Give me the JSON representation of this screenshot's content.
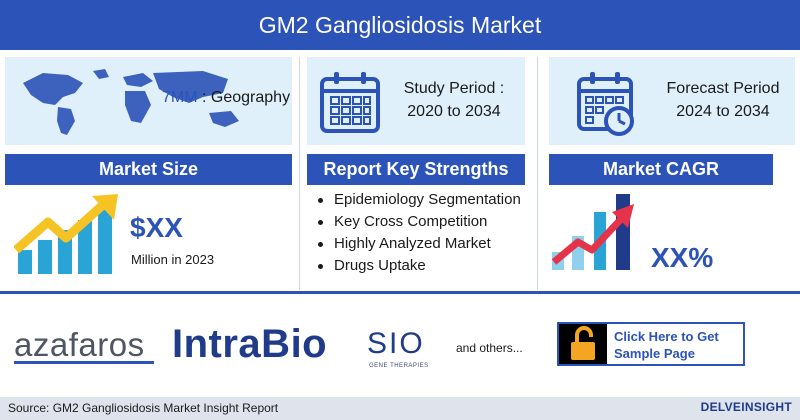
{
  "header": {
    "title": "GM2 Gangliosidosis Market"
  },
  "geography": {
    "highlight": "7MM",
    "label": " : Geography"
  },
  "study_period": {
    "line1": "Study Period :",
    "line2": "2020 to 2034"
  },
  "forecast_period": {
    "line1": "Forecast Period",
    "line2": "2024 to 2034"
  },
  "sections": {
    "market_size": "Market Size",
    "key_strengths": "Report Key Strengths",
    "market_cagr": "Market CAGR"
  },
  "market_size": {
    "value": "$XX",
    "subtitle": "Million in 2023"
  },
  "key_strengths": {
    "items": [
      "Epidemiology Segmentation",
      "Key Cross Competition",
      "Highly Analyzed Market",
      "Drugs Uptake"
    ]
  },
  "market_cagr": {
    "value": "XX%"
  },
  "companies": {
    "logo1": "azafaros",
    "logo2": "IntraBio",
    "logo3": "SIO",
    "logo3_sub": "GENE THERAPIES",
    "others": "and others..."
  },
  "cta": {
    "line1": "Click Here to Get",
    "line2": "Sample Page"
  },
  "footer": {
    "source": "Source: GM2 Gangliosidosis Market Insight Report",
    "brand": "DELVEINSIGHT"
  },
  "colors": {
    "primary": "#2b53b8",
    "panel": "#dff0fa",
    "gold": "#f6c324",
    "teal": "#29a4d4",
    "red": "#e5334a"
  }
}
